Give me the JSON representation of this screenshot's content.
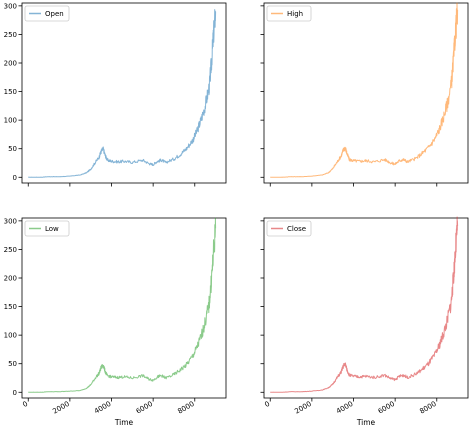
{
  "figure": {
    "shared_xlabel": "Time"
  },
  "chart_data": [
    {
      "type": "line",
      "series": [
        {
          "name": "Open",
          "color": "#1f77b4"
        }
      ],
      "xlim": [
        -300,
        9500
      ],
      "ylim": [
        -10,
        305
      ],
      "xticks": [
        0,
        2000,
        4000,
        6000,
        8000
      ],
      "yticks": [
        0,
        50,
        100,
        150,
        200,
        250,
        300
      ],
      "show_xticklabels": false,
      "show_yticklabels": true,
      "xlabel": "",
      "legend": "top-left",
      "x": [
        0,
        500,
        1000,
        1500,
        2000,
        2500,
        2800,
        3000,
        3200,
        3400,
        3500,
        3600,
        3700,
        3800,
        4000,
        4300,
        4600,
        5000,
        5500,
        5800,
        6000,
        6200,
        6400,
        6600,
        7000,
        7300,
        7600,
        7900,
        8100,
        8300,
        8500,
        8700,
        8800,
        8900,
        9000
      ],
      "y": [
        0,
        0,
        1,
        1,
        2,
        4,
        8,
        14,
        25,
        35,
        45,
        50,
        38,
        30,
        28,
        27,
        28,
        26,
        30,
        24,
        22,
        28,
        30,
        26,
        32,
        40,
        50,
        65,
        80,
        100,
        125,
        160,
        200,
        250,
        290
      ]
    },
    {
      "type": "line",
      "series": [
        {
          "name": "High",
          "color": "#ff7f0e"
        }
      ],
      "xlim": [
        -300,
        9500
      ],
      "ylim": [
        -10,
        305
      ],
      "xticks": [
        0,
        2000,
        4000,
        6000,
        8000
      ],
      "yticks": [
        0,
        50,
        100,
        150,
        200,
        250,
        300
      ],
      "show_xticklabels": false,
      "show_yticklabels": false,
      "xlabel": "",
      "legend": "top-left",
      "x": [
        0,
        500,
        1000,
        1500,
        2000,
        2500,
        2800,
        3000,
        3200,
        3400,
        3500,
        3600,
        3700,
        3800,
        4000,
        4300,
        4600,
        5000,
        5500,
        5800,
        6000,
        6200,
        6400,
        6600,
        7000,
        7300,
        7600,
        7900,
        8100,
        8300,
        8500,
        8700,
        8800,
        8900,
        9000
      ],
      "y": [
        0,
        0,
        1,
        1,
        2,
        4,
        8,
        15,
        26,
        37,
        47,
        52,
        40,
        31,
        29,
        28,
        29,
        27,
        31,
        25,
        23,
        29,
        31,
        27,
        33,
        42,
        52,
        67,
        82,
        102,
        128,
        163,
        205,
        255,
        293
      ]
    },
    {
      "type": "line",
      "series": [
        {
          "name": "Low",
          "color": "#2ca02c"
        }
      ],
      "xlim": [
        -300,
        9500
      ],
      "ylim": [
        -10,
        305
      ],
      "xticks": [
        0,
        2000,
        4000,
        6000,
        8000
      ],
      "yticks": [
        0,
        50,
        100,
        150,
        200,
        250,
        300
      ],
      "show_xticklabels": true,
      "show_yticklabels": true,
      "xlabel": "Time",
      "legend": "top-left",
      "x": [
        0,
        500,
        1000,
        1500,
        2000,
        2500,
        2800,
        3000,
        3200,
        3400,
        3500,
        3600,
        3700,
        3800,
        4000,
        4300,
        4600,
        5000,
        5500,
        5800,
        6000,
        6200,
        6400,
        6600,
        7000,
        7300,
        7600,
        7900,
        8100,
        8300,
        8500,
        8700,
        8800,
        8900,
        9000
      ],
      "y": [
        0,
        0,
        1,
        1,
        2,
        3,
        7,
        13,
        24,
        33,
        43,
        48,
        36,
        29,
        27,
        26,
        27,
        25,
        29,
        23,
        21,
        27,
        29,
        25,
        31,
        39,
        48,
        63,
        78,
        97,
        122,
        157,
        197,
        245,
        287
      ]
    },
    {
      "type": "line",
      "series": [
        {
          "name": "Close",
          "color": "#d62728"
        }
      ],
      "xlim": [
        -300,
        9500
      ],
      "ylim": [
        -10,
        305
      ],
      "xticks": [
        0,
        2000,
        4000,
        6000,
        8000
      ],
      "yticks": [
        0,
        50,
        100,
        150,
        200,
        250,
        300
      ],
      "show_xticklabels": true,
      "show_yticklabels": false,
      "xlabel": "Time",
      "legend": "top-left",
      "x": [
        0,
        500,
        1000,
        1500,
        2000,
        2500,
        2800,
        3000,
        3200,
        3400,
        3500,
        3600,
        3700,
        3800,
        4000,
        4300,
        4600,
        5000,
        5500,
        5800,
        6000,
        6200,
        6400,
        6600,
        7000,
        7300,
        7600,
        7900,
        8100,
        8300,
        8500,
        8700,
        8800,
        8900,
        9000
      ],
      "y": [
        0,
        0,
        1,
        1,
        2,
        4,
        8,
        14,
        25,
        35,
        45,
        50,
        38,
        30,
        28,
        27,
        28,
        26,
        30,
        24,
        22,
        28,
        30,
        26,
        32,
        40,
        50,
        65,
        80,
        100,
        125,
        160,
        200,
        250,
        291
      ]
    }
  ]
}
